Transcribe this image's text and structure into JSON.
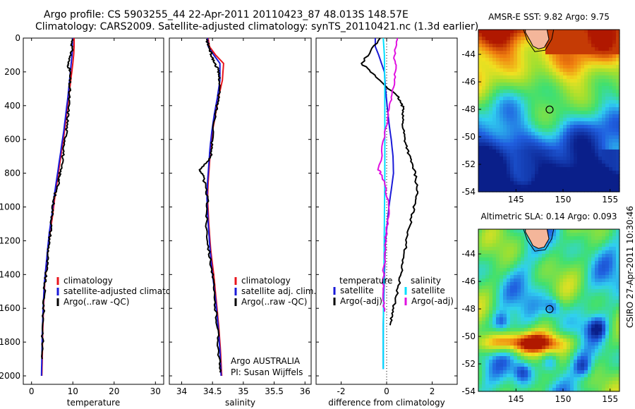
{
  "header": {
    "line1": "Argo profile: CS 5903255_44 22-Apr-2011 20110423_87 48.013S 148.57E",
    "line2": "Climatology: CARS2009. Satellite-adjusted climatology: synTS_20110421.nc (1.3d earlier)"
  },
  "credit": "CSIRO 27-Apr-2011 10:30:46",
  "colors": {
    "red": "#e8141c",
    "blue": "#1a1ad8",
    "black": "#000000",
    "cyan": "#00e0ff",
    "magenta": "#e010e0"
  },
  "chart_data": [
    {
      "type": "line",
      "name": "temperature",
      "xlabel": "temperature",
      "xlim": [
        -2,
        32
      ],
      "ylim": [
        0,
        2050
      ],
      "xticks": [
        0,
        10,
        20,
        30
      ],
      "yticks": [
        0,
        200,
        400,
        600,
        800,
        1000,
        1200,
        1400,
        1600,
        1800,
        2000
      ],
      "y_reversed": true,
      "legend": [
        "climatology",
        "satellite-adjusted climatology",
        "Argo(..raw -QC)"
      ],
      "series": [
        {
          "name": "climatology",
          "color": "red",
          "x": [
            10.3,
            10.3,
            10.2,
            10.0,
            9.5,
            9.0,
            8.5,
            8.0,
            7.4,
            6.8,
            6.2,
            5.6,
            5.1,
            4.5,
            4.0,
            3.6,
            3.2,
            2.9,
            2.7,
            2.6,
            2.5
          ],
          "y": [
            0,
            50,
            100,
            150,
            250,
            350,
            450,
            550,
            650,
            750,
            850,
            950,
            1050,
            1150,
            1250,
            1350,
            1450,
            1600,
            1750,
            1900,
            2000
          ]
        },
        {
          "name": "satellite-adjusted climatology",
          "color": "blue",
          "x": [
            9.9,
            9.9,
            9.8,
            9.6,
            9.2,
            8.8,
            8.3,
            7.8,
            7.2,
            6.6,
            6.0,
            5.4,
            4.9,
            4.3,
            3.9,
            3.5,
            3.1,
            2.8,
            2.6,
            2.5,
            2.4
          ],
          "y": [
            0,
            50,
            100,
            150,
            250,
            350,
            450,
            550,
            650,
            750,
            850,
            950,
            1050,
            1150,
            1250,
            1350,
            1450,
            1600,
            1750,
            1900,
            2000
          ]
        },
        {
          "name": "Argo(..raw -QC)",
          "color": "black",
          "x": [
            9.9,
            9.7,
            8.8,
            9.3,
            9.2,
            9.0,
            8.7,
            8.2,
            7.6,
            6.9,
            6.6,
            5.4,
            5.0,
            4.6,
            4.1,
            3.7,
            3.2,
            2.9,
            2.7,
            2.6
          ],
          "y": [
            5,
            80,
            150,
            200,
            300,
            400,
            500,
            600,
            700,
            800,
            850,
            950,
            1050,
            1150,
            1250,
            1350,
            1450,
            1600,
            1750,
            1900
          ]
        }
      ]
    },
    {
      "type": "line",
      "name": "salinity",
      "xlabel": "salinity",
      "xlim": [
        33.8,
        36.1
      ],
      "ylim": [
        0,
        2050
      ],
      "xticks": [
        34,
        34.5,
        35,
        35.5,
        36
      ],
      "yticks": [
        0,
        200,
        400,
        600,
        800,
        1000,
        1200,
        1400,
        1600,
        1800,
        2000
      ],
      "y_reversed": true,
      "legend": [
        "climatology",
        "satellite adj. clim.",
        "Argo(..raw -QC)"
      ],
      "annotation": [
        "Argo AUSTRALIA",
        "PI: Susan Wijffels"
      ],
      "series": [
        {
          "name": "climatology",
          "color": "red",
          "x": [
            34.43,
            34.45,
            34.55,
            34.68,
            34.66,
            34.6,
            34.55,
            34.5,
            34.47,
            34.45,
            34.43,
            34.42,
            34.44,
            34.47,
            34.52,
            34.56,
            34.6,
            34.63,
            34.65
          ],
          "y": [
            0,
            50,
            100,
            150,
            250,
            350,
            450,
            550,
            650,
            750,
            850,
            950,
            1100,
            1250,
            1400,
            1550,
            1700,
            1850,
            2000
          ]
        },
        {
          "name": "satellite adj. clim.",
          "color": "blue",
          "x": [
            34.42,
            34.43,
            34.52,
            34.62,
            34.62,
            34.58,
            34.53,
            34.49,
            34.46,
            34.44,
            34.42,
            34.41,
            34.43,
            34.46,
            34.5,
            34.55,
            34.59,
            34.62,
            34.64
          ],
          "y": [
            0,
            50,
            100,
            150,
            250,
            350,
            450,
            550,
            650,
            750,
            850,
            950,
            1100,
            1250,
            1400,
            1550,
            1700,
            1850,
            2000
          ]
        },
        {
          "name": "Argo(..raw -QC)",
          "color": "black",
          "x": [
            34.4,
            34.45,
            34.5,
            34.58,
            34.62,
            34.6,
            34.55,
            34.5,
            34.48,
            34.3,
            34.35,
            34.42,
            34.4,
            34.44,
            34.5,
            34.53,
            34.58,
            34.6,
            34.62
          ],
          "y": [
            5,
            60,
            120,
            180,
            250,
            350,
            450,
            600,
            700,
            780,
            820,
            950,
            1100,
            1250,
            1400,
            1550,
            1700,
            1850,
            1980
          ]
        }
      ]
    },
    {
      "type": "line",
      "name": "difference",
      "xlabel": "difference from climatology",
      "xlim": [
        -3.1,
        3.1
      ],
      "ylim": [
        0,
        2050
      ],
      "xticks": [
        -2,
        0,
        2
      ],
      "yticks": [
        0,
        200,
        400,
        600,
        800,
        1000,
        1200,
        1400,
        1600,
        1800,
        2000
      ],
      "y_reversed": true,
      "legend_headers": [
        "temperature",
        "salinity"
      ],
      "legend": [
        "satellite",
        "Argo(-adj)",
        "satellite",
        "Argo(-adj)"
      ],
      "series": [
        {
          "name": "temperature satellite",
          "color": "blue",
          "x": [
            -0.5,
            -0.5,
            -0.35,
            -0.1,
            -0.05,
            0.02,
            0.1,
            0.2,
            0.28,
            0.3,
            0.2,
            0.1,
            -0.05,
            -0.1,
            -0.15,
            -0.15
          ],
          "y": [
            0,
            50,
            100,
            200,
            300,
            400,
            500,
            600,
            700,
            800,
            900,
            1000,
            1200,
            1400,
            1700,
            1960
          ]
        },
        {
          "name": "temperature Argo(-adj)",
          "color": "black",
          "x": [
            -0.3,
            -1.1,
            -0.3,
            0.5,
            0.75,
            0.7,
            0.8,
            1.0,
            1.25,
            1.35,
            1.2,
            0.95,
            0.75,
            0.55,
            0.3,
            0.15
          ],
          "y": [
            0,
            150,
            250,
            350,
            420,
            500,
            600,
            700,
            800,
            900,
            1000,
            1150,
            1300,
            1450,
            1600,
            1700
          ]
        },
        {
          "name": "salinity satellite",
          "color": "cyan",
          "x": [
            -0.15,
            -0.1,
            -0.08,
            -0.08,
            -0.08,
            -0.1,
            -0.12,
            -0.14,
            -0.15,
            -0.15
          ],
          "y": [
            0,
            100,
            300,
            500,
            800,
            1100,
            1400,
            1600,
            1800,
            1960
          ]
        },
        {
          "name": "salinity Argo(-adj)",
          "color": "magenta",
          "x": [
            0.5,
            0.35,
            0.4,
            0.2,
            0.0,
            -0.35,
            -0.1,
            0.1,
            -0.05,
            -0.15,
            -0.1
          ],
          "y": [
            0,
            100,
            200,
            350,
            500,
            780,
            850,
            1000,
            1200,
            1450,
            1620
          ]
        }
      ]
    }
  ],
  "maps": [
    {
      "title": "AMSR-E SST: 9.82 Argo: 9.75",
      "xticks": [
        145,
        150,
        155
      ],
      "yticks": [
        -44,
        -46,
        -48,
        -50,
        -52,
        -54
      ],
      "xlim": [
        141,
        156
      ],
      "ylim": [
        -54,
        -42.2
      ],
      "argo_lon": 148.57,
      "argo_lat": -48.013
    },
    {
      "title": "Altimetric SLA: 0.14 Argo: 0.093",
      "xticks": [
        145,
        150,
        155
      ],
      "yticks": [
        -44,
        -46,
        -48,
        -50,
        -52,
        -54
      ],
      "xlim": [
        141,
        156
      ],
      "ylim": [
        -54,
        -42.2
      ],
      "argo_lon": 148.57,
      "argo_lat": -48.013
    }
  ]
}
